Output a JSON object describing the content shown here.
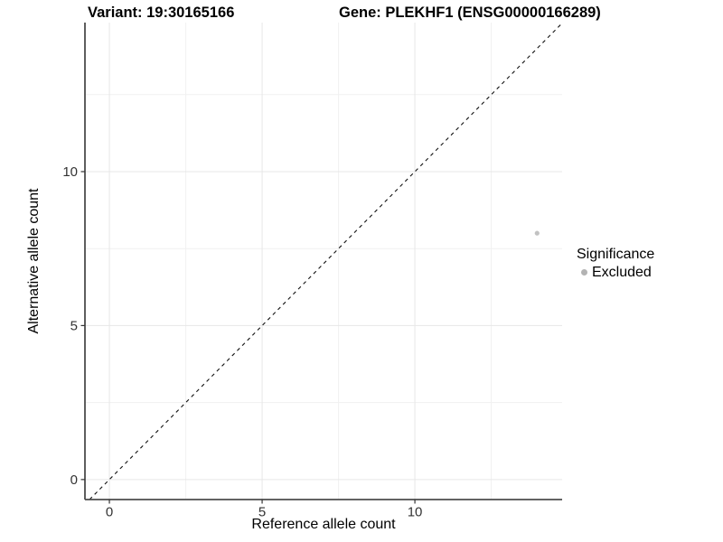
{
  "chart_data": {
    "type": "scatter",
    "title_left": "Variant: 19:30165166",
    "title_right": "Gene: PLEKHF1 (ENSG00000166289)",
    "xlabel": "Reference allele count",
    "ylabel": "Alternative allele count",
    "x_range": [
      -0.8,
      14.82
    ],
    "y_range": [
      -0.65,
      14.84
    ],
    "x_ticks": [
      0,
      5,
      10
    ],
    "y_ticks": [
      0,
      5,
      10
    ],
    "x_minor_ticks": [
      2.5,
      7.5,
      12.5
    ],
    "y_minor_ticks": [
      2.5,
      7.5,
      12.5
    ],
    "grid": true,
    "legend_position": "right",
    "legend": {
      "title": "Significance",
      "entries": [
        {
          "label": "Excluded",
          "color": "#b3b3b3"
        }
      ]
    },
    "series": [
      {
        "name": "Excluded",
        "color": "#c2c2c2",
        "points": [
          {
            "x": 14,
            "y": 8
          }
        ]
      }
    ],
    "reference_line": {
      "kind": "identity y = x",
      "style": "dashed",
      "color": "#111111"
    }
  },
  "colors": {
    "background": "#ffffff",
    "grid_major": "#e7e7e7",
    "grid_minor": "#f1f1f1",
    "axis_line": "#4d4d4d",
    "tick_mark": "#333333",
    "tick_text": "#333333",
    "title_text": "#000000"
  }
}
